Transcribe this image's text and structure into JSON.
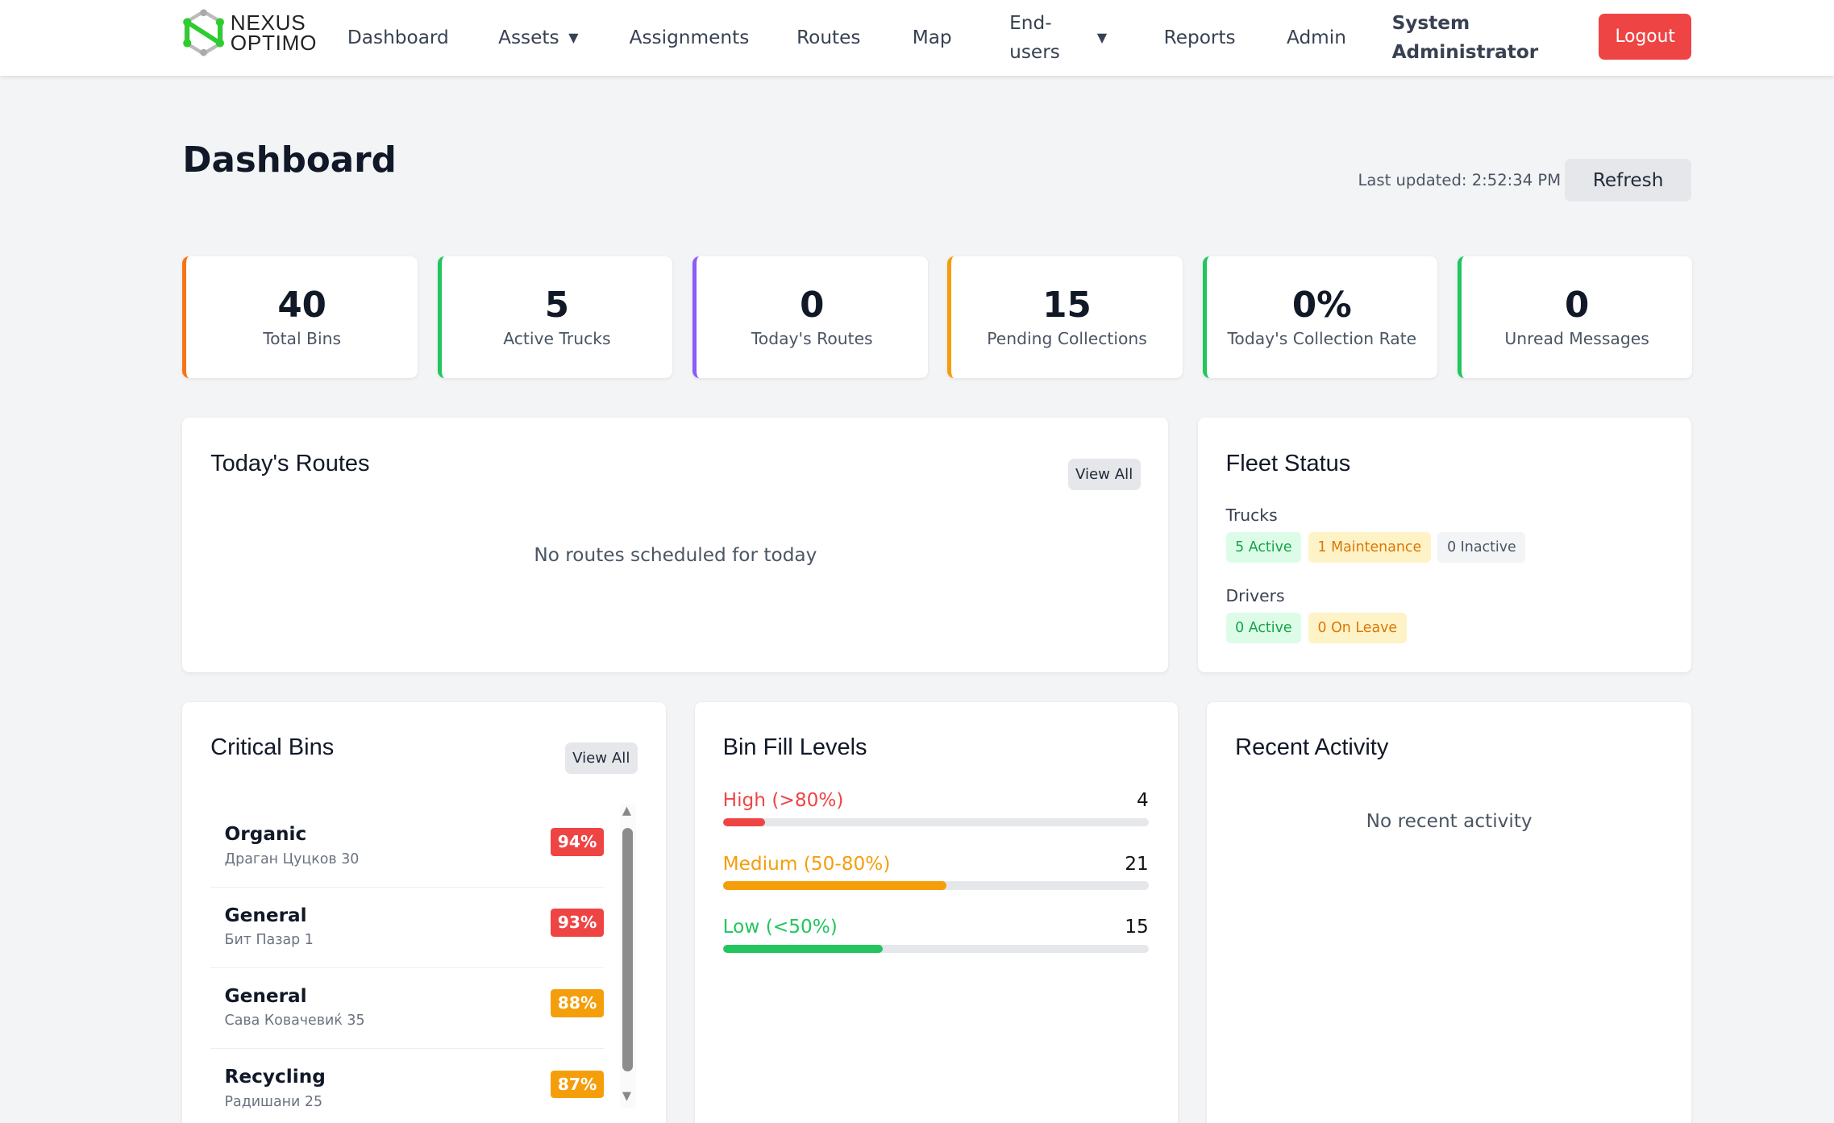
{
  "nav": {
    "brand_line1": "NEXUS",
    "brand_line2": "OPTIMO",
    "items": [
      "Dashboard",
      "Assets",
      "Assignments",
      "Routes",
      "Map",
      "End-users",
      "Reports",
      "Admin"
    ],
    "user": "System Administrator",
    "logout": "Logout"
  },
  "header": {
    "title": "Dashboard",
    "last_updated": "Last updated: 2:52:34 PM",
    "refresh": "Refresh"
  },
  "stats": [
    {
      "value": "40",
      "label": "Total Bins",
      "color": "#f97316"
    },
    {
      "value": "5",
      "label": "Active Trucks",
      "color": "#22c55e"
    },
    {
      "value": "0",
      "label": "Today's Routes",
      "color": "#8b5cf6"
    },
    {
      "value": "15",
      "label": "Pending Collections",
      "color": "#f59e0b"
    },
    {
      "value": "0%",
      "label": "Today's Collection Rate",
      "color": "#22c55e"
    },
    {
      "value": "0",
      "label": "Unread Messages",
      "color": "#22c55e"
    }
  ],
  "routes": {
    "title": "Today's Routes",
    "view_all": "View All",
    "empty": "No routes scheduled for today"
  },
  "fleet": {
    "title": "Fleet Status",
    "trucks_label": "Trucks",
    "trucks": [
      "5 Active",
      "1 Maintenance",
      "0 Inactive"
    ],
    "drivers_label": "Drivers",
    "drivers": [
      "0 Active",
      "0 On Leave"
    ]
  },
  "critical": {
    "title": "Critical Bins",
    "view_all": "View All",
    "bins": [
      {
        "type": "Organic",
        "address": "Драган Цуцков 30",
        "fill": "94%",
        "color": "#ef4444"
      },
      {
        "type": "General",
        "address": "Бит Пазар 1",
        "fill": "93%",
        "color": "#ef4444"
      },
      {
        "type": "General",
        "address": "Сава Ковачевиќ 35",
        "fill": "88%",
        "color": "#f59e0b"
      },
      {
        "type": "Recycling",
        "address": "Радишани 25",
        "fill": "87%",
        "color": "#f59e0b"
      }
    ]
  },
  "fill_levels": {
    "title": "Bin Fill Levels",
    "levels": [
      {
        "label": "High (>80%)",
        "count": "4",
        "percent": 10,
        "color": "#ef4444"
      },
      {
        "label": "Medium (50-80%)",
        "count": "21",
        "percent": 52.5,
        "color": "#f59e0b"
      },
      {
        "label": "Low (<50%)",
        "count": "15",
        "percent": 37.5,
        "color": "#22c55e"
      }
    ]
  },
  "activity": {
    "title": "Recent Activity",
    "empty": "No recent activity"
  }
}
